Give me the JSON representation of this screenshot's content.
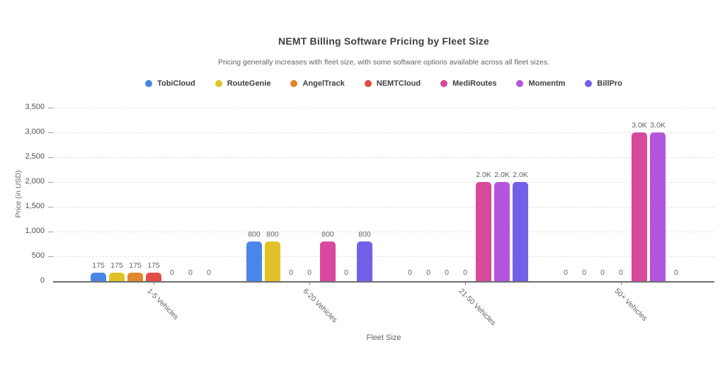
{
  "chart_data": {
    "type": "bar",
    "title": "NEMT Billing Software Pricing by Fleet Size",
    "subtitle": "Pricing generally increases with fleet size, with some software options available across all fleet sizes.",
    "xlabel": "Fleet Size",
    "ylabel": "Price (in USD)",
    "categories": [
      "1-5 Vehicles",
      "6-20 Vehicles",
      "21-50 Vehicles",
      "50+ Vehicles"
    ],
    "series": [
      {
        "name": "TobiCloud",
        "color": "#4a86e8",
        "values": [
          175,
          800,
          0,
          0
        ]
      },
      {
        "name": "RouteGenie",
        "color": "#e1c226",
        "values": [
          175,
          800,
          0,
          0
        ]
      },
      {
        "name": "AngelTrack",
        "color": "#e1862e",
        "values": [
          175,
          0,
          0,
          0
        ]
      },
      {
        "name": "NEMTCloud",
        "color": "#e14d45",
        "values": [
          175,
          0,
          0,
          0
        ]
      },
      {
        "name": "MediRoutes",
        "color": "#d8499d",
        "values": [
          0,
          800,
          2000,
          3000
        ]
      },
      {
        "name": "Momentm",
        "color": "#b455de",
        "values": [
          0,
          0,
          2000,
          3000
        ]
      },
      {
        "name": "BillPro",
        "color": "#7160e8",
        "values": [
          0,
          800,
          2000,
          0
        ]
      }
    ],
    "bar_labels": {
      "1-5 Vehicles": [
        "175",
        "175",
        "175",
        "175",
        "0",
        "0",
        "0"
      ],
      "6-20 Vehicles": [
        "800",
        "800",
        "0",
        "0",
        "800",
        "0",
        "800"
      ],
      "21-50 Vehicles": [
        "0",
        "0",
        "0",
        "0",
        "2.0K",
        "2.0K",
        "2.0K"
      ],
      "50+ Vehicles": [
        "0",
        "0",
        "0",
        "0",
        "3.0K",
        "3.0K",
        "0"
      ]
    },
    "ylim": [
      0,
      3500
    ],
    "ytick_step": 500,
    "yticks": [
      "0",
      "500",
      "1,000",
      "1,500",
      "2,000",
      "2,500",
      "3,000",
      "3,500"
    ],
    "grid": "horizontal-dashed",
    "legend_position": "top"
  }
}
